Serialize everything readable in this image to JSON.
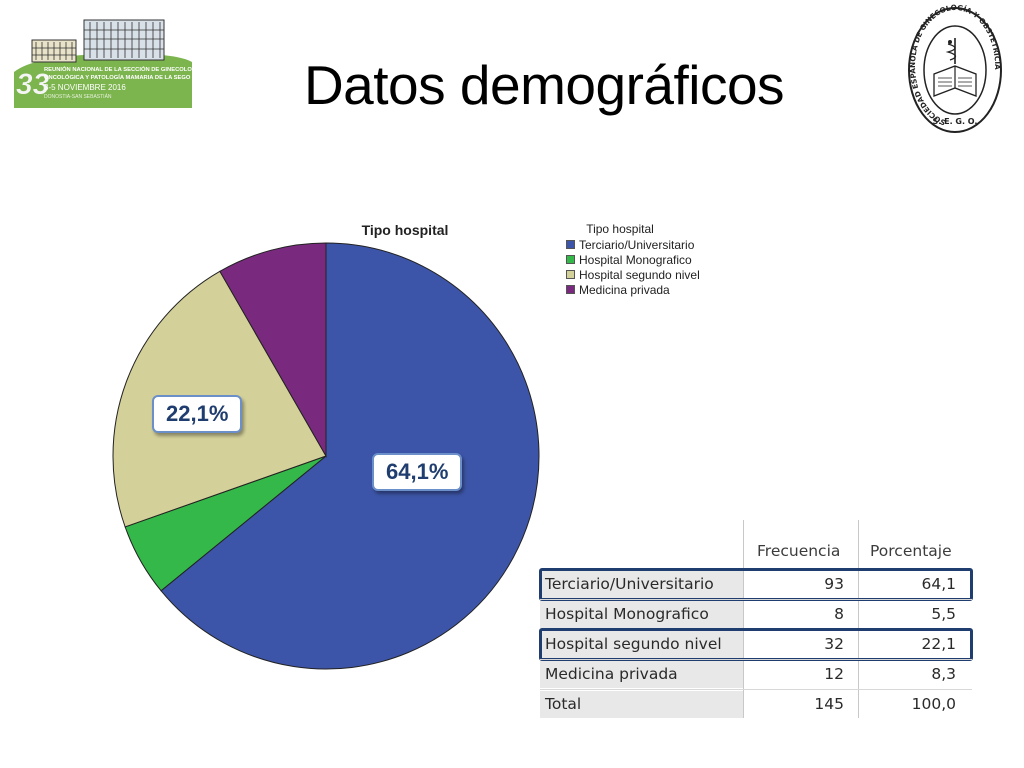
{
  "slide": {
    "title": "Datos demográficos"
  },
  "logo_left": {
    "number": "33",
    "line1": "REUNIÓN NACIONAL DE LA SECCIÓN DE GINECOLOGÍA",
    "line2": "ONCOLÓGICA Y PATOLOGÍA MAMARIA DE LA SEGO",
    "date": "3-5 NOVIEMBRE 2016",
    "place": "DONOSTIA-SAN SEBASTIÁN"
  },
  "logo_right": {
    "ring_text": "SOCIEDAD ESPAÑOLA DE GINECOLOGÍA Y OBSTETRICIA",
    "bottom_text": "S. E. G. O."
  },
  "chart_data": {
    "type": "pie",
    "title": "Tipo hospital",
    "legend_title": "Tipo hospital",
    "legend_position": "right",
    "slices": [
      {
        "label": "Terciario/Universitario",
        "value": 64.1,
        "color": "#3d55a8"
      },
      {
        "label": "Hospital Monografico",
        "value": 5.5,
        "color": "#35b84a"
      },
      {
        "label": "Hospital segundo nivel",
        "value": 22.1,
        "color": "#d4d09a"
      },
      {
        "label": "Medicina privada",
        "value": 8.3,
        "color": "#7a2a7e"
      }
    ],
    "callouts": [
      {
        "text": "22,1%",
        "slice": "Hospital segundo nivel"
      },
      {
        "text": "64,1%",
        "slice": "Terciario/Universitario"
      }
    ]
  },
  "table": {
    "headers": [
      "Frecuencia",
      "Porcentaje"
    ],
    "rows": [
      {
        "category": "Terciario/Universitario",
        "frecuencia": "93",
        "porcentaje": "64,1",
        "highlight": true
      },
      {
        "category": "Hospital Monografico",
        "frecuencia": "8",
        "porcentaje": "5,5",
        "highlight": false
      },
      {
        "category": "Hospital segundo nivel",
        "frecuencia": "32",
        "porcentaje": "22,1",
        "highlight": true
      },
      {
        "category": "Medicina privada",
        "frecuencia": "12",
        "porcentaje": "8,3",
        "highlight": false
      },
      {
        "category": "Total",
        "frecuencia": "145",
        "porcentaje": "100,0",
        "highlight": false
      }
    ]
  }
}
